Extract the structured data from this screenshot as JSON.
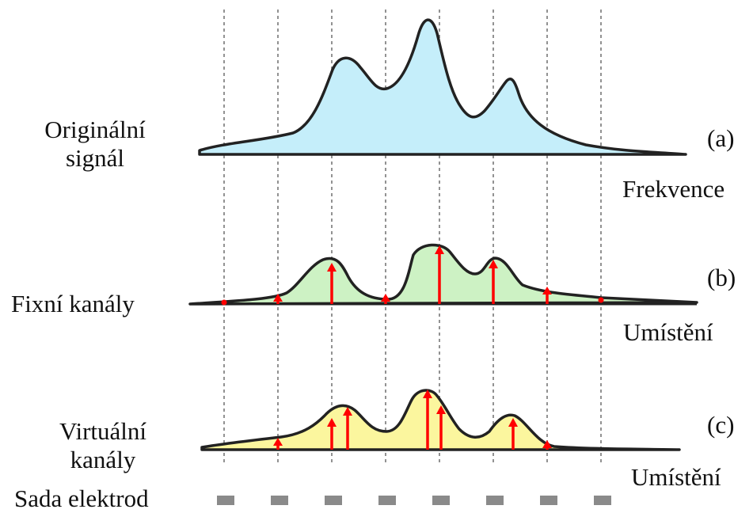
{
  "panel_a": {
    "left_label_line1": "Originální",
    "left_label_line2": "signál",
    "tag": "(a)",
    "axis_label": "Frekvence",
    "fill_color": "#c5eefa"
  },
  "panel_b": {
    "left_label": "Fixní kanály",
    "tag": "(b)",
    "axis_label": "Umístění",
    "fill_color": "#cdf2c4"
  },
  "panel_c": {
    "left_label_line1": "Virtuální",
    "left_label_line2": "kanály",
    "tag": "(c)",
    "axis_label": "Umístění",
    "fill_color": "#fbf69e"
  },
  "electrodes": {
    "label": "Sada elektrod",
    "count": 8,
    "color": "#8a8a8a"
  },
  "style": {
    "outline_color": "#222222",
    "arrow_color": "#ff0000",
    "guide_color": "#777777"
  }
}
